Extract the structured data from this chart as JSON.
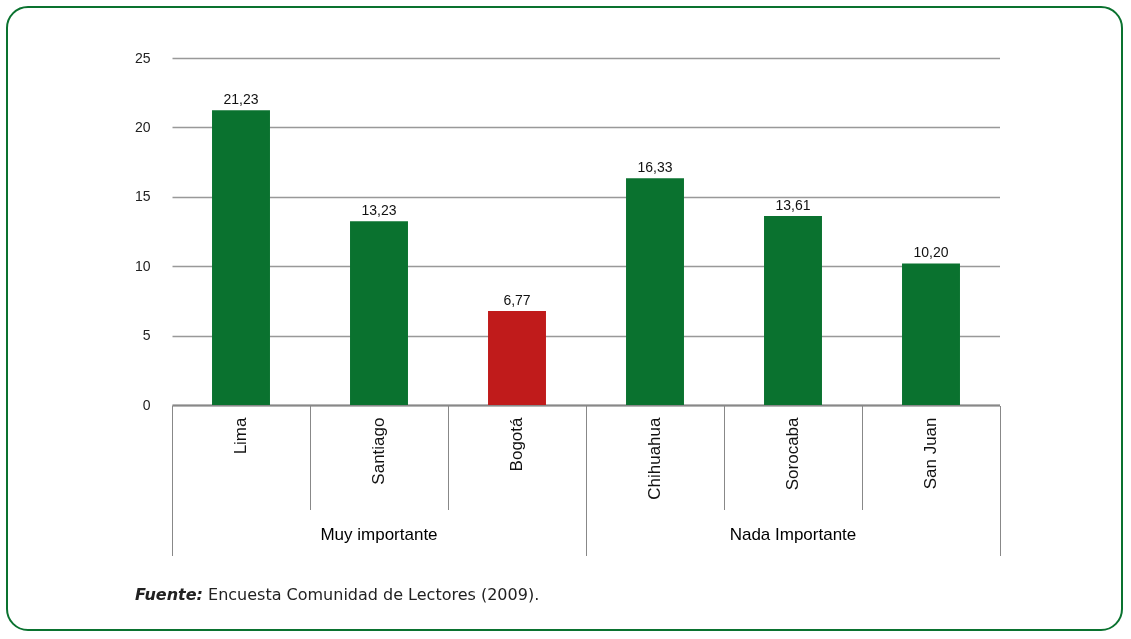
{
  "chart_data": {
    "type": "bar",
    "categories": [
      "Lima",
      "Santiago",
      "Bogotá",
      "Chihuahua",
      "Sorocaba",
      "San Juan"
    ],
    "values": [
      21.23,
      13.23,
      6.77,
      16.33,
      13.61,
      10.2
    ],
    "value_labels": [
      "21,23",
      "13,23",
      "6,77",
      "16,33",
      "13,61",
      "10,20"
    ],
    "colors": [
      "#0a722f",
      "#0a722f",
      "#c01b1b",
      "#0a722f",
      "#0a722f",
      "#0a722f"
    ],
    "ylim": [
      0,
      25
    ],
    "yticks": [
      0,
      5,
      10,
      15,
      20,
      25
    ],
    "grid": "y",
    "annotations": [
      "Muy importante",
      "Nada Importante",
      "Fuente: Encuesta Comunidad de Lectores (2009)."
    ]
  }
}
